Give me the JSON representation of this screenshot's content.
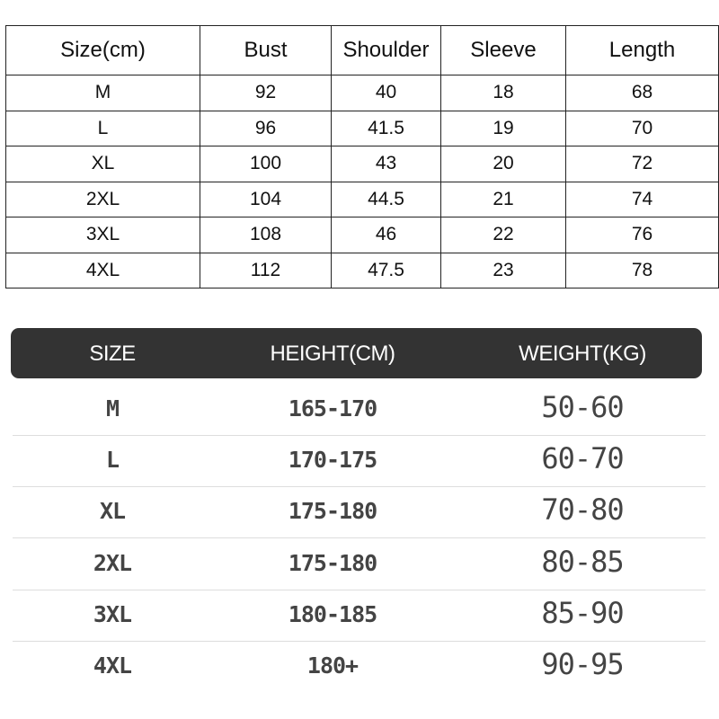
{
  "measurements_table": {
    "headers": [
      "Size(cm)",
      "Bust",
      "Shoulder",
      "Sleeve",
      "Length"
    ],
    "rows": [
      [
        "M",
        "92",
        "40",
        "18",
        "68"
      ],
      [
        "L",
        "96",
        "41.5",
        "19",
        "70"
      ],
      [
        "XL",
        "100",
        "43",
        "20",
        "72"
      ],
      [
        "2XL",
        "104",
        "44.5",
        "21",
        "74"
      ],
      [
        "3XL",
        "108",
        "46",
        "22",
        "76"
      ],
      [
        "4XL",
        "112",
        "47.5",
        "23",
        "78"
      ]
    ]
  },
  "fit_table": {
    "headers": [
      "SIZE",
      "HEIGHT(CM)",
      "WEIGHT(KG)"
    ],
    "header_color": "#333333",
    "rows": [
      [
        "M",
        "165-170",
        "50-60"
      ],
      [
        "L",
        "170-175",
        "60-70"
      ],
      [
        "XL",
        "175-180",
        "70-80"
      ],
      [
        "2XL",
        "175-180",
        "80-85"
      ],
      [
        "3XL",
        "180-185",
        "85-90"
      ],
      [
        "4XL",
        "180+",
        "90-95"
      ]
    ]
  }
}
